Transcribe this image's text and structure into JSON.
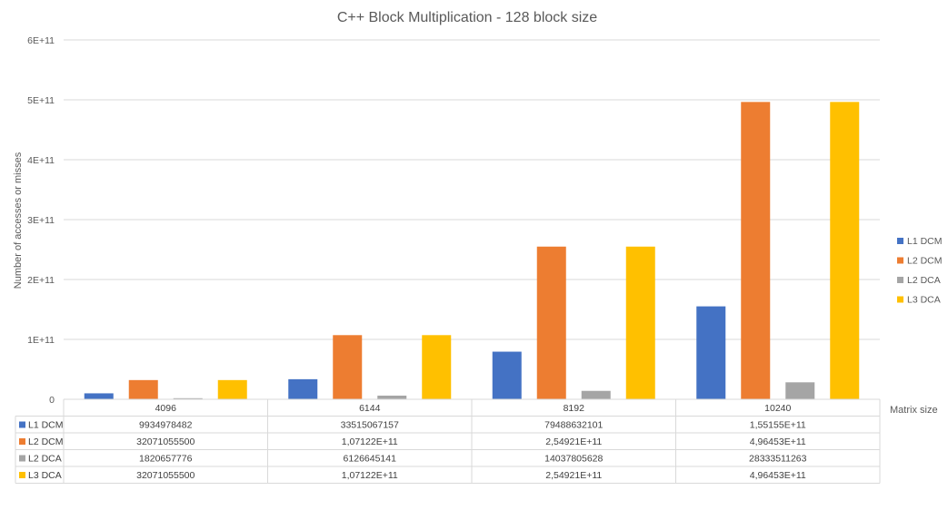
{
  "chart_data": {
    "type": "bar",
    "title": "C++ Block Multiplication - 128 block size",
    "xlabel": "Matrix size",
    "ylabel": "Number of accesses or misses",
    "categories": [
      "4096",
      "6144",
      "8192",
      "10240"
    ],
    "y_ticks": [
      "0",
      "1E+11",
      "2E+11",
      "3E+11",
      "4E+11",
      "5E+11",
      "6E+11"
    ],
    "ylim": [
      0,
      600000000000
    ],
    "grid": true,
    "legend_position": "right",
    "series": [
      {
        "name": "L1 DCM",
        "color": "#4472C4",
        "values": [
          9934978482,
          33515067157,
          79488632101,
          155155000000
        ],
        "labels": [
          "9934978482",
          "33515067157",
          "79488632101",
          "1,55155E+11"
        ]
      },
      {
        "name": "L2 DCM",
        "color": "#ED7D31",
        "values": [
          32071055500,
          107122000000,
          254921000000,
          496453000000
        ],
        "labels": [
          "32071055500",
          "1,07122E+11",
          "2,54921E+11",
          "4,96453E+11"
        ]
      },
      {
        "name": "L2 DCA",
        "color": "#A5A5A5",
        "values": [
          1820657776,
          6126645141,
          14037805628,
          28333511263
        ],
        "labels": [
          "1820657776",
          "6126645141",
          "14037805628",
          "28333511263"
        ]
      },
      {
        "name": "L3 DCA",
        "color": "#FFC000",
        "values": [
          32071055500,
          107122000000,
          254921000000,
          496453000000
        ],
        "labels": [
          "32071055500",
          "1,07122E+11",
          "2,54921E+11",
          "4,96453E+11"
        ]
      }
    ]
  }
}
